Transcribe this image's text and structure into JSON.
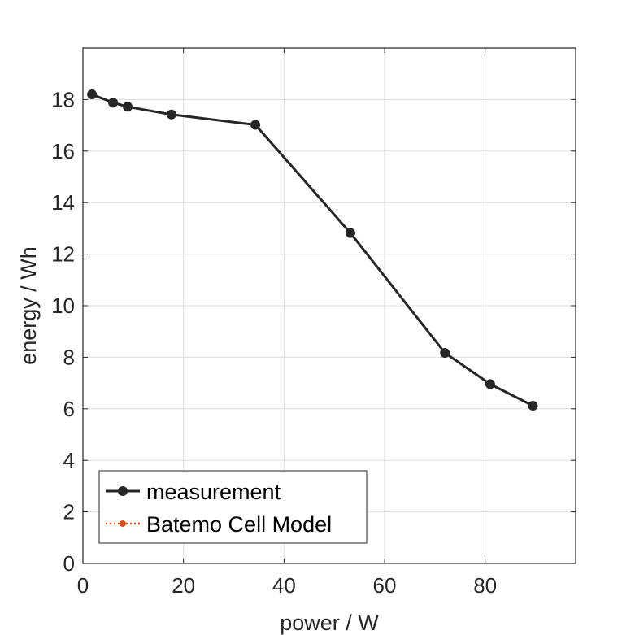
{
  "chart_data": {
    "type": "line",
    "title": "",
    "xlabel": "power / W",
    "ylabel": "energy / Wh",
    "xlim": [
      0,
      98
    ],
    "ylim": [
      0,
      20
    ],
    "xticks": [
      0,
      20,
      40,
      60,
      80
    ],
    "yticks": [
      0,
      2,
      4,
      6,
      8,
      10,
      12,
      14,
      16,
      18
    ],
    "grid": true,
    "legend": "bottom-left",
    "series": [
      {
        "name": "measurement",
        "color": "#262626",
        "marker": "circle",
        "line": "solid",
        "x": [
          1.8,
          6.0,
          8.9,
          17.6,
          34.3,
          53.2,
          72.0,
          81.0,
          89.5
        ],
        "y": [
          18.2,
          17.88,
          17.72,
          17.42,
          17.02,
          12.82,
          8.17,
          6.96,
          6.12
        ]
      },
      {
        "name": "Batemo Cell Model",
        "color": "#D95319",
        "marker": "circle",
        "line": "dotted",
        "x": [],
        "y": []
      }
    ]
  }
}
